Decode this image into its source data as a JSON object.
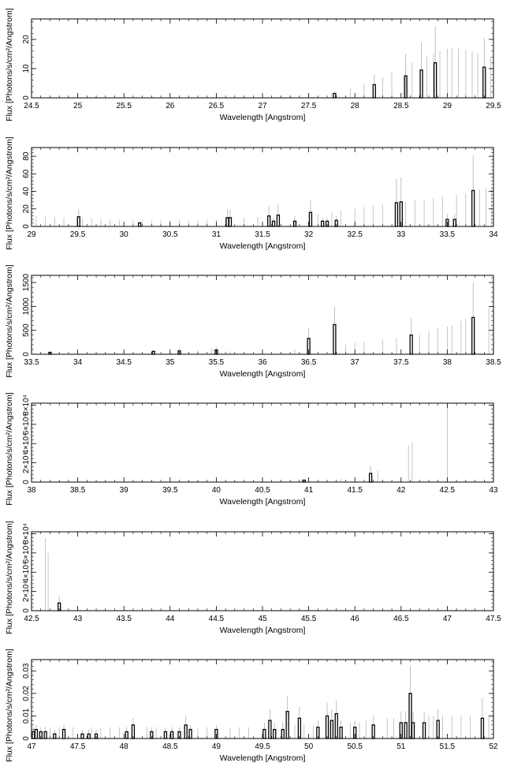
{
  "chart_data": [
    {
      "type": "bar",
      "xlabel": "Wavelength [Angstrom]",
      "ylabel": "Flux [Photons/s/cm²/Angstrom]",
      "xlim": [
        24.5,
        29.5
      ],
      "ylim": [
        0,
        27
      ],
      "xticks": [
        "24.5",
        "25",
        "25.5",
        "26",
        "26.5",
        "27",
        "27.5",
        "28",
        "28.5",
        "29",
        "29.5"
      ],
      "yticks": [
        "0",
        "10",
        "20"
      ],
      "grid": false,
      "model_lines": [
        {
          "x": 27.3,
          "y": 0.5,
          "err": 0.3
        },
        {
          "x": 27.75,
          "y": 1.0,
          "err": 0.8
        },
        {
          "x": 27.95,
          "y": 1.8,
          "err": 1.5
        },
        {
          "x": 28.1,
          "y": 2.8,
          "err": 2.0
        },
        {
          "x": 28.3,
          "y": 4.0,
          "err": 3.0
        },
        {
          "x": 28.4,
          "y": 5.5,
          "err": 3.5
        },
        {
          "x": 28.55,
          "y": 7.0,
          "err": 4.0
        },
        {
          "x": 28.62,
          "y": 8.0,
          "err": 4.0
        },
        {
          "x": 28.78,
          "y": 9.5,
          "err": 4.5
        },
        {
          "x": 28.85,
          "y": 10.5,
          "err": 4.5
        },
        {
          "x": 28.92,
          "y": 11.5,
          "err": 4.5
        },
        {
          "x": 29.0,
          "y": 12.3,
          "err": 4.5
        },
        {
          "x": 29.05,
          "y": 12.5,
          "err": 4.5
        },
        {
          "x": 29.12,
          "y": 12.3,
          "err": 4.5
        },
        {
          "x": 29.2,
          "y": 12.0,
          "err": 4.5
        },
        {
          "x": 29.27,
          "y": 11.5,
          "err": 4.5
        },
        {
          "x": 29.33,
          "y": 11.0,
          "err": 4.5
        },
        {
          "x": 29.47,
          "y": 10.0,
          "err": 4.0
        }
      ],
      "bars": [
        {
          "x": 27.78,
          "y": 1.5,
          "err": 0.5
        },
        {
          "x": 28.21,
          "y": 4.5,
          "err": 3.5
        },
        {
          "x": 28.55,
          "y": 7.5,
          "err": 7.5
        },
        {
          "x": 28.72,
          "y": 9.5,
          "err": 9.5
        },
        {
          "x": 28.87,
          "y": 12.0,
          "err": 12.5
        },
        {
          "x": 29.4,
          "y": 10.5,
          "err": 10.0
        }
      ]
    },
    {
      "type": "bar",
      "xlabel": "Wavelength [Angstrom]",
      "ylabel": "Flux [Photons/s/cm²/Angstrom]",
      "xlim": [
        29,
        34
      ],
      "ylim": [
        0,
        90
      ],
      "xticks": [
        "29",
        "29.5",
        "30",
        "30.5",
        "31",
        "31.5",
        "32",
        "32.5",
        "33",
        "33.5",
        "34"
      ],
      "yticks": [
        "0",
        "20",
        "40",
        "60",
        "80"
      ],
      "grid": false,
      "model_lines": [
        {
          "x": 29.05,
          "y": 0,
          "err": 12
        },
        {
          "x": 29.15,
          "y": 0,
          "err": 11
        },
        {
          "x": 29.25,
          "y": 0,
          "err": 11
        },
        {
          "x": 29.35,
          "y": 0,
          "err": 10
        },
        {
          "x": 29.55,
          "y": 0,
          "err": 9
        },
        {
          "x": 29.65,
          "y": 0,
          "err": 9
        },
        {
          "x": 29.75,
          "y": 0,
          "err": 8
        },
        {
          "x": 29.85,
          "y": 0,
          "err": 8
        },
        {
          "x": 29.95,
          "y": 0,
          "err": 7
        },
        {
          "x": 30.1,
          "y": 0,
          "err": 7
        },
        {
          "x": 30.2,
          "y": 0,
          "err": 7
        },
        {
          "x": 30.3,
          "y": 0,
          "err": 7
        },
        {
          "x": 30.4,
          "y": 0,
          "err": 7
        },
        {
          "x": 30.5,
          "y": 0,
          "err": 7
        },
        {
          "x": 30.6,
          "y": 0,
          "err": 7
        },
        {
          "x": 30.7,
          "y": 0,
          "err": 7
        },
        {
          "x": 30.8,
          "y": 0,
          "err": 7
        },
        {
          "x": 30.9,
          "y": 0,
          "err": 8
        },
        {
          "x": 31.0,
          "y": 0,
          "err": 8
        },
        {
          "x": 31.1,
          "y": 0,
          "err": 9
        },
        {
          "x": 31.3,
          "y": 0,
          "err": 10
        },
        {
          "x": 31.45,
          "y": 0,
          "err": 11
        },
        {
          "x": 31.85,
          "y": 0,
          "err": 12
        },
        {
          "x": 32.1,
          "y": 0,
          "err": 14
        },
        {
          "x": 32.25,
          "y": 0,
          "err": 16
        },
        {
          "x": 32.35,
          "y": 0,
          "err": 18
        },
        {
          "x": 32.5,
          "y": 0,
          "err": 20
        },
        {
          "x": 32.6,
          "y": 0,
          "err": 22
        },
        {
          "x": 32.7,
          "y": 0,
          "err": 24
        },
        {
          "x": 32.8,
          "y": 0,
          "err": 25
        },
        {
          "x": 33.05,
          "y": 0,
          "err": 28
        },
        {
          "x": 33.15,
          "y": 0,
          "err": 30
        },
        {
          "x": 33.25,
          "y": 0,
          "err": 31
        },
        {
          "x": 33.35,
          "y": 0,
          "err": 32
        },
        {
          "x": 33.45,
          "y": 0,
          "err": 34
        },
        {
          "x": 33.6,
          "y": 0,
          "err": 36
        },
        {
          "x": 33.7,
          "y": 0,
          "err": 38
        },
        {
          "x": 33.85,
          "y": 0,
          "err": 42
        },
        {
          "x": 33.92,
          "y": 0,
          "err": 43
        },
        {
          "x": 33.98,
          "y": 0,
          "err": 44
        }
      ],
      "bars": [
        {
          "x": 29.51,
          "y": 11,
          "err": 9
        },
        {
          "x": 30.17,
          "y": 4,
          "err": 2
        },
        {
          "x": 31.12,
          "y": 10,
          "err": 9
        },
        {
          "x": 31.15,
          "y": 10,
          "err": 9
        },
        {
          "x": 31.57,
          "y": 12,
          "err": 11
        },
        {
          "x": 31.62,
          "y": 6,
          "err": 4
        },
        {
          "x": 31.67,
          "y": 13,
          "err": 12
        },
        {
          "x": 31.85,
          "y": 6,
          "err": 3
        },
        {
          "x": 32.02,
          "y": 16,
          "err": 14
        },
        {
          "x": 32.15,
          "y": 6,
          "err": 4
        },
        {
          "x": 32.2,
          "y": 6,
          "err": 4
        },
        {
          "x": 32.3,
          "y": 7,
          "err": 5
        },
        {
          "x": 32.95,
          "y": 27,
          "err": 27
        },
        {
          "x": 33.0,
          "y": 28,
          "err": 28
        },
        {
          "x": 33.5,
          "y": 8,
          "err": 6
        },
        {
          "x": 33.58,
          "y": 8,
          "err": 6
        },
        {
          "x": 33.78,
          "y": 41,
          "err": 40
        }
      ]
    },
    {
      "type": "bar",
      "xlabel": "Wavelength [Angstrom]",
      "ylabel": "Flux [Photons/s/cm²/Angstrom]",
      "xlim": [
        33.5,
        38.5
      ],
      "ylim": [
        0,
        1650
      ],
      "xticks": [
        "33.5",
        "34",
        "34.5",
        "35",
        "35.5",
        "36",
        "36.5",
        "37",
        "37.5",
        "38",
        "38.5"
      ],
      "yticks": [
        "0",
        "500",
        "1000",
        "1500"
      ],
      "grid": false,
      "model_lines": [
        {
          "x": 33.8,
          "y": 0,
          "err": 40
        },
        {
          "x": 34.0,
          "y": 0,
          "err": 35
        },
        {
          "x": 34.2,
          "y": 0,
          "err": 30
        },
        {
          "x": 34.5,
          "y": 0,
          "err": 30
        },
        {
          "x": 35.0,
          "y": 0,
          "err": 40
        },
        {
          "x": 35.3,
          "y": 0,
          "err": 80
        },
        {
          "x": 35.45,
          "y": 0,
          "err": 120
        },
        {
          "x": 35.65,
          "y": 0,
          "err": 60
        },
        {
          "x": 36.35,
          "y": 0,
          "err": 100
        },
        {
          "x": 36.9,
          "y": 0,
          "err": 200
        },
        {
          "x": 37.0,
          "y": 0,
          "err": 240
        },
        {
          "x": 37.1,
          "y": 0,
          "err": 260
        },
        {
          "x": 37.3,
          "y": 0,
          "err": 300
        },
        {
          "x": 37.45,
          "y": 0,
          "err": 330
        },
        {
          "x": 37.7,
          "y": 0,
          "err": 400
        },
        {
          "x": 37.8,
          "y": 0,
          "err": 480
        },
        {
          "x": 37.9,
          "y": 0,
          "err": 540
        },
        {
          "x": 38.0,
          "y": 0,
          "err": 580
        },
        {
          "x": 38.05,
          "y": 0,
          "err": 600
        },
        {
          "x": 38.15,
          "y": 0,
          "err": 700
        },
        {
          "x": 38.2,
          "y": 0,
          "err": 750
        },
        {
          "x": 38.45,
          "y": 0,
          "err": 980
        }
      ],
      "bars": [
        {
          "x": 33.7,
          "y": 40,
          "err": 20
        },
        {
          "x": 34.82,
          "y": 60,
          "err": 30
        },
        {
          "x": 35.1,
          "y": 70,
          "err": 40
        },
        {
          "x": 35.5,
          "y": 90,
          "err": 60
        },
        {
          "x": 36.5,
          "y": 330,
          "err": 230
        },
        {
          "x": 36.78,
          "y": 620,
          "err": 380
        },
        {
          "x": 37.61,
          "y": 400,
          "err": 360
        },
        {
          "x": 38.28,
          "y": 770,
          "err": 730
        }
      ]
    },
    {
      "type": "bar",
      "xlabel": "Wavelength [Angstrom]",
      "ylabel": "Flux [Photons/s/cm²/Angstrom]",
      "xlim": [
        38,
        43
      ],
      "ylim": [
        0,
        8200
      ],
      "xticks": [
        "38",
        "38.5",
        "39",
        "39.5",
        "40",
        "40.5",
        "41",
        "41.5",
        "42",
        "42.5",
        "43"
      ],
      "yticks": [
        "0",
        "2×10⁴",
        "4×10⁴",
        "6×10⁴",
        "8×10⁴"
      ],
      "grid": false,
      "model_lines": [
        {
          "x": 41.35,
          "y": 0,
          "err": 300
        },
        {
          "x": 41.75,
          "y": 0,
          "err": 1200
        },
        {
          "x": 42.0,
          "y": 0,
          "err": 300
        },
        {
          "x": 42.08,
          "y": 0,
          "err": 3800
        },
        {
          "x": 42.12,
          "y": 0,
          "err": 4100
        },
        {
          "x": 42.5,
          "y": 0,
          "err": 7800
        }
      ],
      "bars": [
        {
          "x": 40.95,
          "y": 200,
          "err": 100
        },
        {
          "x": 41.67,
          "y": 900,
          "err": 800
        }
      ]
    },
    {
      "type": "bar",
      "xlabel": "Wavelength [Angstrom]",
      "ylabel": "Flux [Photons/s/cm²/Angstrom]",
      "xlim": [
        42.5,
        47.5
      ],
      "ylim": [
        0,
        8200
      ],
      "xticks": [
        "42.5",
        "43",
        "43.5",
        "44",
        "44.5",
        "45",
        "45.5",
        "46",
        "46.5",
        "47",
        "47.5"
      ],
      "yticks": [
        "0",
        "2×10⁴",
        "4×10⁴",
        "6×10⁴",
        "8×10⁴"
      ],
      "grid": false,
      "model_lines": [
        {
          "x": 42.65,
          "y": 0,
          "err": 7500
        },
        {
          "x": 42.68,
          "y": 0,
          "err": 6000
        }
      ],
      "bars": [
        {
          "x": 42.8,
          "y": 800,
          "err": 700
        }
      ]
    },
    {
      "type": "bar",
      "xlabel": "Wavelength [Angstrom]",
      "ylabel": "Flux [Photons/s/cm²/Angstrom]",
      "xlim": [
        47,
        52
      ],
      "ylim": [
        0,
        0.035
      ],
      "xticks": [
        "47",
        "47.5",
        "48",
        "48.5",
        "49",
        "49.5",
        "50",
        "50.5",
        "51",
        "51.5",
        "52"
      ],
      "yticks": [
        "0",
        "0.01",
        "0.02",
        "0.03"
      ],
      "grid": false,
      "model_lines": [
        {
          "x": 47.2,
          "y": 0,
          "err": 0.005
        },
        {
          "x": 47.3,
          "y": 0,
          "err": 0.005
        },
        {
          "x": 47.45,
          "y": 0,
          "err": 0.005
        },
        {
          "x": 47.65,
          "y": 0,
          "err": 0.005
        },
        {
          "x": 47.75,
          "y": 0,
          "err": 0.005
        },
        {
          "x": 47.85,
          "y": 0,
          "err": 0.005
        },
        {
          "x": 47.95,
          "y": 0,
          "err": 0.005
        },
        {
          "x": 48.25,
          "y": 0,
          "err": 0.005
        },
        {
          "x": 48.35,
          "y": 0,
          "err": 0.005
        },
        {
          "x": 48.8,
          "y": 0,
          "err": 0.005
        },
        {
          "x": 48.9,
          "y": 0,
          "err": 0.005
        },
        {
          "x": 49.15,
          "y": 0,
          "err": 0.005
        },
        {
          "x": 49.25,
          "y": 0,
          "err": 0.005
        },
        {
          "x": 49.35,
          "y": 0,
          "err": 0.005
        },
        {
          "x": 49.85,
          "y": 0,
          "err": 0.006
        },
        {
          "x": 49.95,
          "y": 0,
          "err": 0.006
        },
        {
          "x": 50.05,
          "y": 0,
          "err": 0.006
        },
        {
          "x": 50.45,
          "y": 0,
          "err": 0.007
        },
        {
          "x": 50.55,
          "y": 0,
          "err": 0.007
        },
        {
          "x": 50.62,
          "y": 0,
          "err": 0.008
        },
        {
          "x": 50.85,
          "y": 0,
          "err": 0.009
        },
        {
          "x": 50.92,
          "y": 0,
          "err": 0.009
        },
        {
          "x": 51.3,
          "y": 0,
          "err": 0.01
        },
        {
          "x": 51.35,
          "y": 0,
          "err": 0.01
        },
        {
          "x": 51.45,
          "y": 0,
          "err": 0.01
        },
        {
          "x": 51.55,
          "y": 0,
          "err": 0.01
        },
        {
          "x": 51.65,
          "y": 0,
          "err": 0.01
        },
        {
          "x": 51.75,
          "y": 0,
          "err": 0.01
        },
        {
          "x": 51.95,
          "y": 0,
          "err": 0.01
        }
      ],
      "bars": [
        {
          "x": 47.02,
          "y": 0.003,
          "err": 0.002
        },
        {
          "x": 47.05,
          "y": 0.004,
          "err": 0.002
        },
        {
          "x": 47.1,
          "y": 0.003,
          "err": 0.002
        },
        {
          "x": 47.15,
          "y": 0.003,
          "err": 0.002
        },
        {
          "x": 47.25,
          "y": 0.002,
          "err": 0.002
        },
        {
          "x": 47.35,
          "y": 0.004,
          "err": 0.002
        },
        {
          "x": 47.55,
          "y": 0.002,
          "err": 0.002
        },
        {
          "x": 47.62,
          "y": 0.002,
          "err": 0.002
        },
        {
          "x": 47.7,
          "y": 0.002,
          "err": 0.002
        },
        {
          "x": 48.03,
          "y": 0.003,
          "err": 0.002
        },
        {
          "x": 48.1,
          "y": 0.006,
          "err": 0.003
        },
        {
          "x": 48.3,
          "y": 0.003,
          "err": 0.002
        },
        {
          "x": 48.45,
          "y": 0.003,
          "err": 0.002
        },
        {
          "x": 48.52,
          "y": 0.003,
          "err": 0.002
        },
        {
          "x": 48.6,
          "y": 0.003,
          "err": 0.002
        },
        {
          "x": 48.67,
          "y": 0.006,
          "err": 0.004
        },
        {
          "x": 48.72,
          "y": 0.004,
          "err": 0.002
        },
        {
          "x": 49.0,
          "y": 0.004,
          "err": 0.002
        },
        {
          "x": 49.52,
          "y": 0.004,
          "err": 0.003
        },
        {
          "x": 49.58,
          "y": 0.008,
          "err": 0.005
        },
        {
          "x": 49.63,
          "y": 0.004,
          "err": 0.003
        },
        {
          "x": 49.72,
          "y": 0.004,
          "err": 0.003
        },
        {
          "x": 49.77,
          "y": 0.012,
          "err": 0.007
        },
        {
          "x": 49.9,
          "y": 0.009,
          "err": 0.005
        },
        {
          "x": 50.1,
          "y": 0.005,
          "err": 0.003
        },
        {
          "x": 50.2,
          "y": 0.01,
          "err": 0.006
        },
        {
          "x": 50.25,
          "y": 0.008,
          "err": 0.005
        },
        {
          "x": 50.3,
          "y": 0.011,
          "err": 0.006
        },
        {
          "x": 50.35,
          "y": 0.005,
          "err": 0.003
        },
        {
          "x": 50.5,
          "y": 0.005,
          "err": 0.003
        },
        {
          "x": 50.7,
          "y": 0.006,
          "err": 0.004
        },
        {
          "x": 51.0,
          "y": 0.007,
          "err": 0.005
        },
        {
          "x": 51.05,
          "y": 0.007,
          "err": 0.005
        },
        {
          "x": 51.1,
          "y": 0.02,
          "err": 0.012
        },
        {
          "x": 51.13,
          "y": 0.007,
          "err": 0.005
        },
        {
          "x": 51.25,
          "y": 0.007,
          "err": 0.005
        },
        {
          "x": 51.4,
          "y": 0.008,
          "err": 0.005
        },
        {
          "x": 51.88,
          "y": 0.009,
          "err": 0.009
        }
      ]
    }
  ]
}
